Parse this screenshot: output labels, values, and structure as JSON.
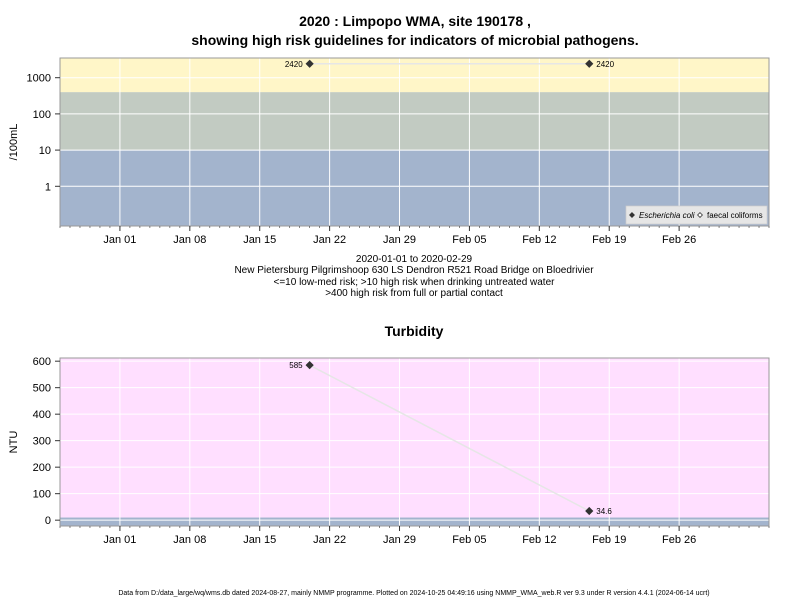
{
  "chart_data": [
    {
      "type": "line",
      "title_line1": "2020 : Limpopo WMA, site 190178 ,",
      "title_line2": "showing high risk guidelines for indicators of microbial pathogens.",
      "ylabel": "/100mL",
      "yscale": "log",
      "ylim": [
        0.08,
        3500
      ],
      "yticks": [
        1,
        10,
        100,
        1000
      ],
      "ytick_labels": [
        "1",
        "10",
        "100",
        "1000"
      ],
      "xlim": [
        "2019-12-26",
        "2020-03-06"
      ],
      "xticks": [
        "2020-01-01",
        "2020-01-08",
        "2020-01-15",
        "2020-01-22",
        "2020-01-29",
        "2020-02-05",
        "2020-02-12",
        "2020-02-19",
        "2020-02-26"
      ],
      "xtick_labels": [
        "Jan 01",
        "Jan 08",
        "Jan 15",
        "Jan 22",
        "Jan 29",
        "Feb 05",
        "Feb 12",
        "Feb 19",
        "Feb 26"
      ],
      "bands": [
        {
          "from": 0.08,
          "to": 10,
          "color": "#a3b4cd"
        },
        {
          "from": 10,
          "to": 400,
          "color": "#c2cbc2"
        },
        {
          "from": 400,
          "to": 3500,
          "color": "#fff6c8"
        }
      ],
      "series": [
        {
          "name": "Escherichia coli",
          "marker": "filled-diamond",
          "color": "#333333",
          "x": [
            "2020-01-20",
            "2020-02-17"
          ],
          "y": [
            2420,
            2420
          ],
          "labels": [
            "2420",
            "2420"
          ]
        },
        {
          "name": "faecal coliforms",
          "marker": "open-diamond",
          "color": "#333333",
          "x": [],
          "y": [],
          "labels": []
        }
      ],
      "legend_position": "bottom-right",
      "subtitle_lines": [
        "2020-01-01 to 2020-02-29",
        "New Pietersburg Pilgrimshoop 630 LS Dendron R521 Road Bridge on Bloedrivier",
        "<=10 low-med risk; >10 high risk when drinking untreated water",
        ">400 high risk from full or partial contact"
      ]
    },
    {
      "type": "line",
      "title": "Turbidity",
      "ylabel": "NTU",
      "yscale": "linear",
      "ylim": [
        -22,
        612
      ],
      "yticks": [
        0,
        100,
        200,
        300,
        400,
        500,
        600
      ],
      "ytick_labels": [
        "0",
        "100",
        "200",
        "300",
        "400",
        "500",
        "600"
      ],
      "xlim": [
        "2019-12-26",
        "2020-03-06"
      ],
      "xticks": [
        "2020-01-01",
        "2020-01-08",
        "2020-01-15",
        "2020-01-22",
        "2020-01-29",
        "2020-02-05",
        "2020-02-12",
        "2020-02-19",
        "2020-02-26"
      ],
      "xtick_labels": [
        "Jan 01",
        "Jan 08",
        "Jan 15",
        "Jan 22",
        "Jan 29",
        "Feb 05",
        "Feb 12",
        "Feb 19",
        "Feb 26"
      ],
      "bands": [
        {
          "from": -22,
          "to": 10,
          "color": "#a3b4cd"
        },
        {
          "from": 10,
          "to": 612,
          "color": "#ffdfff"
        }
      ],
      "series": [
        {
          "name": "Turbidity",
          "marker": "filled-diamond",
          "color": "#333333",
          "x": [
            "2020-01-20",
            "2020-02-17"
          ],
          "y": [
            585,
            34.6
          ],
          "labels": [
            "585",
            "34.6"
          ]
        }
      ]
    }
  ],
  "footer": "Data from D:/data_large/wq/wms.db dated 2024-08-27, mainly NMMP programme. Plotted on 2024-10-25 04:49:16 using NMMP_WMA_web.R ver 9.3 under R version 4.4.1 (2024-06-14 ucrt)"
}
